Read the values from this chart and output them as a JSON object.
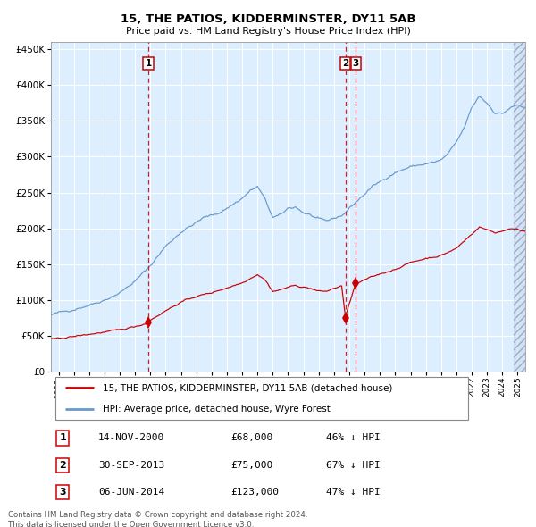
{
  "title": "15, THE PATIOS, KIDDERMINSTER, DY11 5AB",
  "subtitle": "Price paid vs. HM Land Registry's House Price Index (HPI)",
  "legend_label_red": "15, THE PATIOS, KIDDERMINSTER, DY11 5AB (detached house)",
  "legend_label_blue": "HPI: Average price, detached house, Wyre Forest",
  "footer1": "Contains HM Land Registry data © Crown copyright and database right 2024.",
  "footer2": "This data is licensed under the Open Government Licence v3.0.",
  "sale_events": [
    {
      "num": 1,
      "date": "14-NOV-2000",
      "price": 68000,
      "pct": "46%",
      "direction": "↓",
      "year_x": 2000.87
    },
    {
      "num": 2,
      "date": "30-SEP-2013",
      "price": 75000,
      "pct": "67%",
      "direction": "↓",
      "year_x": 2013.75
    },
    {
      "num": 3,
      "date": "06-JUN-2014",
      "price": 123000,
      "pct": "47%",
      "direction": "↓",
      "year_x": 2014.42
    }
  ],
  "red_color": "#cc0000",
  "blue_color": "#6699cc",
  "dashed_color": "#cc2222",
  "plot_bg": "#ddeeff",
  "ylim": [
    0,
    460000
  ],
  "xlim_start": 1994.5,
  "xlim_end": 2025.5,
  "yticks": [
    0,
    50000,
    100000,
    150000,
    200000,
    250000,
    300000,
    350000,
    400000,
    450000
  ],
  "hpi_key_points": [
    [
      1994.5,
      78000
    ],
    [
      1995.0,
      82000
    ],
    [
      1996.0,
      87000
    ],
    [
      1997.0,
      93000
    ],
    [
      1998.0,
      100000
    ],
    [
      1999.0,
      110000
    ],
    [
      2000.0,
      126000
    ],
    [
      2001.0,
      148000
    ],
    [
      2002.0,
      175000
    ],
    [
      2003.0,
      195000
    ],
    [
      2004.0,
      208000
    ],
    [
      2004.5,
      215000
    ],
    [
      2005.0,
      218000
    ],
    [
      2005.5,
      222000
    ],
    [
      2006.0,
      228000
    ],
    [
      2006.5,
      235000
    ],
    [
      2007.0,
      242000
    ],
    [
      2007.5,
      252000
    ],
    [
      2008.0,
      258000
    ],
    [
      2008.5,
      240000
    ],
    [
      2009.0,
      215000
    ],
    [
      2009.5,
      218000
    ],
    [
      2010.0,
      228000
    ],
    [
      2010.5,
      230000
    ],
    [
      2011.0,
      222000
    ],
    [
      2011.5,
      218000
    ],
    [
      2012.0,
      212000
    ],
    [
      2012.5,
      210000
    ],
    [
      2013.0,
      214000
    ],
    [
      2013.5,
      218000
    ],
    [
      2013.75,
      222000
    ],
    [
      2014.0,
      228000
    ],
    [
      2014.5,
      238000
    ],
    [
      2015.0,
      248000
    ],
    [
      2015.5,
      258000
    ],
    [
      2016.0,
      265000
    ],
    [
      2016.5,
      272000
    ],
    [
      2017.0,
      278000
    ],
    [
      2017.5,
      282000
    ],
    [
      2018.0,
      286000
    ],
    [
      2018.5,
      288000
    ],
    [
      2019.0,
      290000
    ],
    [
      2019.5,
      292000
    ],
    [
      2020.0,
      295000
    ],
    [
      2020.5,
      305000
    ],
    [
      2021.0,
      320000
    ],
    [
      2021.5,
      340000
    ],
    [
      2022.0,
      368000
    ],
    [
      2022.5,
      385000
    ],
    [
      2023.0,
      375000
    ],
    [
      2023.5,
      362000
    ],
    [
      2024.0,
      360000
    ],
    [
      2024.5,
      368000
    ],
    [
      2025.0,
      372000
    ],
    [
      2025.5,
      368000
    ]
  ],
  "red_key_points": [
    [
      1994.5,
      44000
    ],
    [
      1995.0,
      46000
    ],
    [
      1996.0,
      49000
    ],
    [
      1997.0,
      52000
    ],
    [
      1998.0,
      55000
    ],
    [
      1999.0,
      58000
    ],
    [
      2000.0,
      63000
    ],
    [
      2000.87,
      68000
    ],
    [
      2001.0,
      72000
    ],
    [
      2002.0,
      85000
    ],
    [
      2003.0,
      97000
    ],
    [
      2004.0,
      105000
    ],
    [
      2005.0,
      110000
    ],
    [
      2006.0,
      117000
    ],
    [
      2007.0,
      124000
    ],
    [
      2008.0,
      136000
    ],
    [
      2008.5,
      128000
    ],
    [
      2009.0,
      112000
    ],
    [
      2009.5,
      114000
    ],
    [
      2010.0,
      118000
    ],
    [
      2010.5,
      120000
    ],
    [
      2011.0,
      118000
    ],
    [
      2011.5,
      116000
    ],
    [
      2012.0,
      112000
    ],
    [
      2012.5,
      112000
    ],
    [
      2013.0,
      116000
    ],
    [
      2013.5,
      120000
    ],
    [
      2013.75,
      75000
    ],
    [
      2014.0,
      95000
    ],
    [
      2014.42,
      123000
    ],
    [
      2014.5,
      122000
    ],
    [
      2015.0,
      128000
    ],
    [
      2016.0,
      136000
    ],
    [
      2017.0,
      143000
    ],
    [
      2018.0,
      152000
    ],
    [
      2019.0,
      158000
    ],
    [
      2020.0,
      162000
    ],
    [
      2021.0,
      172000
    ],
    [
      2022.0,
      192000
    ],
    [
      2022.5,
      202000
    ],
    [
      2023.0,
      198000
    ],
    [
      2023.5,
      194000
    ],
    [
      2024.0,
      196000
    ],
    [
      2024.5,
      200000
    ],
    [
      2025.0,
      198000
    ],
    [
      2025.5,
      196000
    ]
  ]
}
